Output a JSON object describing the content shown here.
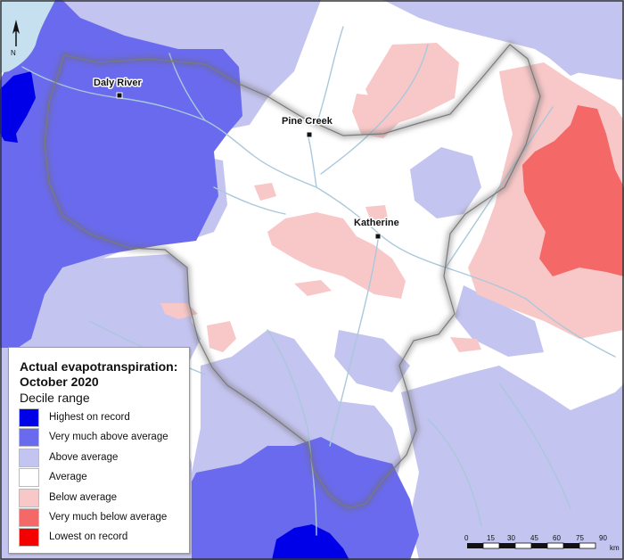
{
  "map": {
    "towns": [
      {
        "name": "Daly River"
      },
      {
        "name": "Pine Creek"
      },
      {
        "name": "Katherine"
      }
    ],
    "north_arrow": {
      "label": "N",
      "icon": "north-arrow-icon"
    },
    "colors": {
      "highest": "#0000e8",
      "very_much_above": "#6a6aee",
      "above": "#c4c4f0",
      "average": "#ffffff",
      "below": "#f8c8c8",
      "very_much_below": "#f46868",
      "lowest": "#f40000",
      "water": "#c7e0f0",
      "rivers": "#a9c8dc"
    }
  },
  "legend": {
    "title": "Actual evapotranspiration:\nOctober 2020",
    "subtitle": "Decile range",
    "items": [
      {
        "label": "Highest on record",
        "color": "#0000e8"
      },
      {
        "label": "Very much above average",
        "color": "#6a6aee"
      },
      {
        "label": "Above average",
        "color": "#c4c4f0"
      },
      {
        "label": "Average",
        "color": "#ffffff"
      },
      {
        "label": "Below average",
        "color": "#f8c8c8"
      },
      {
        "label": "Very much below average",
        "color": "#f46868"
      },
      {
        "label": "Lowest on record",
        "color": "#f40000"
      }
    ]
  },
  "scalebar": {
    "ticks": [
      "0",
      "15",
      "30",
      "45",
      "60",
      "75",
      "90"
    ],
    "unit": "km"
  }
}
